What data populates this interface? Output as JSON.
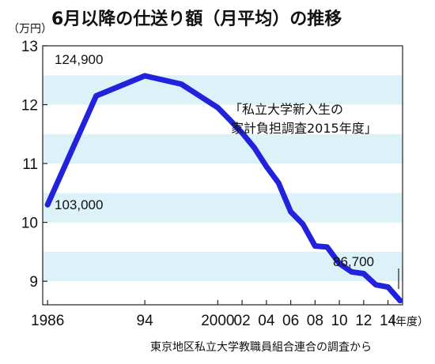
{
  "chart_data": {
    "type": "line",
    "title": "6月以降の仕送り額（月平均）の推移",
    "y_unit": "（万円）",
    "x_unit": "（年度）",
    "ylim": [
      8.6,
      13
    ],
    "y_ticks": [
      "9",
      "10",
      "11",
      "12",
      "13"
    ],
    "x_tick_labels": [
      "1986",
      "94",
      "2000",
      "02",
      "04",
      "06",
      "08",
      "10",
      "12",
      "14"
    ],
    "x_tick_years": [
      1986,
      1994,
      2000,
      2002,
      2004,
      2006,
      2008,
      2010,
      2012,
      2014
    ],
    "series": [
      {
        "color": "#2222dd",
        "x": [
          1986,
          1990,
          1994,
          1997,
          2000,
          2001,
          2002,
          2003,
          2004,
          2005,
          2006,
          2007,
          2008,
          2009,
          2010,
          2011,
          2012,
          2013,
          2014,
          2015
        ],
        "y": [
          10.3,
          12.15,
          12.49,
          12.35,
          11.95,
          11.74,
          11.52,
          11.27,
          10.95,
          10.67,
          10.18,
          9.97,
          9.6,
          9.58,
          9.3,
          9.16,
          9.13,
          8.94,
          8.9,
          8.67
        ]
      }
    ],
    "data_labels": [
      {
        "text": "124,900"
      },
      {
        "text": "103,000"
      },
      {
        "text": "86,700"
      }
    ],
    "annotation_lines": [
      "「私立大学新入生の",
      "家計負担調査2015年度」"
    ],
    "band_color": "#ddf1f9",
    "grid": false
  },
  "source": "東京地区私立大学教職員組合連合の調査から"
}
